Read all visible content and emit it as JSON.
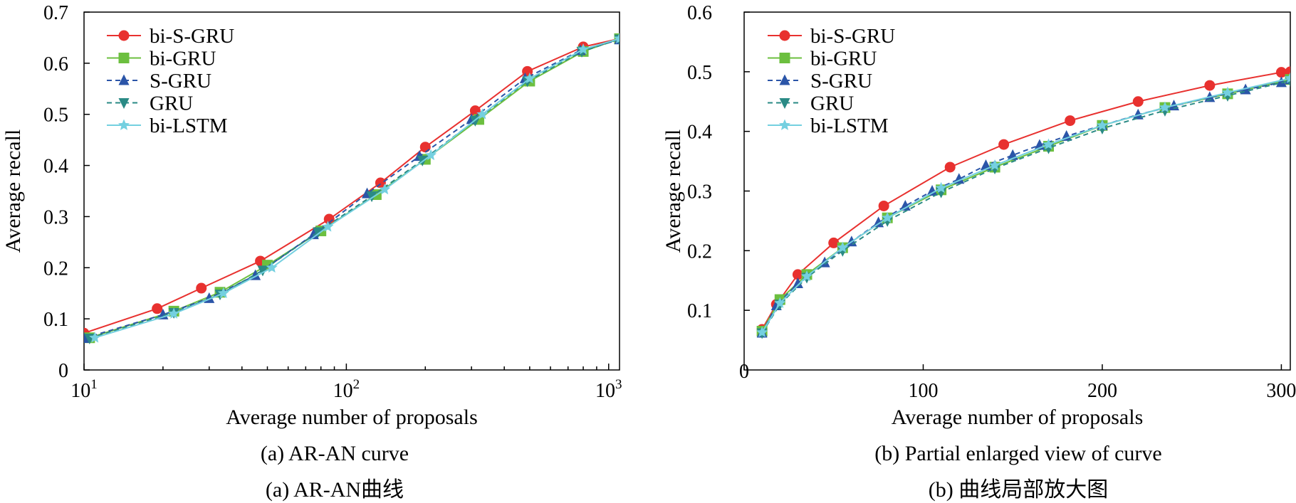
{
  "chart_data": [
    {
      "type": "line",
      "title": "",
      "xlabel": "Average number of proposals",
      "ylabel": "Average recall",
      "xscale": "log",
      "xlim": [
        10,
        1100
      ],
      "ylim": [
        0,
        0.7
      ],
      "x_ticks": [
        10,
        100,
        1000
      ],
      "x_tick_base": "10",
      "x_tick_exponents": [
        "1",
        "2",
        "3"
      ],
      "y_ticks": [
        0,
        0.1,
        0.2,
        0.3,
        0.4,
        0.5,
        0.6,
        0.7
      ],
      "y_tick_labels": [
        "0",
        "0.1",
        "0.2",
        "0.3",
        "0.4",
        "0.5",
        "0.6",
        "0.7"
      ],
      "legend_position": "top-left",
      "caption_en": "(a) AR-AN curve",
      "caption_cn": "(a) AR-AN曲线",
      "series": [
        {
          "name": "bi-S-GRU",
          "color": "#e8312f",
          "marker": "circle",
          "dash": "solid",
          "x": [
            10,
            19,
            28,
            47,
            86,
            135,
            200,
            310,
            490,
            800,
            1100
          ],
          "y": [
            0.072,
            0.12,
            0.16,
            0.213,
            0.295,
            0.366,
            0.436,
            0.507,
            0.584,
            0.632,
            0.648
          ]
        },
        {
          "name": "bi-GRU",
          "color": "#6cbf3f",
          "marker": "square",
          "dash": "solid",
          "x": [
            10.5,
            22,
            33,
            50,
            80,
            130,
            200,
            320,
            500,
            800,
            1100
          ],
          "y": [
            0.063,
            0.115,
            0.152,
            0.205,
            0.272,
            0.343,
            0.412,
            0.49,
            0.565,
            0.623,
            0.648
          ]
        },
        {
          "name": "S-GRU",
          "color": "#2b55a8",
          "marker": "triangle-up",
          "dash": "dashed",
          "x": [
            10,
            20,
            30,
            45,
            75,
            120,
            190,
            300,
            480,
            780,
            1100
          ],
          "y": [
            0.062,
            0.108,
            0.14,
            0.185,
            0.265,
            0.345,
            0.418,
            0.49,
            0.57,
            0.625,
            0.646
          ]
        },
        {
          "name": "GRU",
          "color": "#2a8a85",
          "marker": "triangle-down",
          "dash": "dashed",
          "x": [
            10.5,
            22,
            33,
            48,
            78,
            125,
            195,
            310,
            490,
            790,
            1100
          ],
          "y": [
            0.062,
            0.112,
            0.148,
            0.195,
            0.27,
            0.34,
            0.41,
            0.488,
            0.565,
            0.623,
            0.647
          ]
        },
        {
          "name": "bi-LSTM",
          "color": "#74d0e0",
          "marker": "star",
          "dash": "solid",
          "x": [
            11,
            22,
            34,
            52,
            85,
            140,
            210,
            330,
            500,
            800,
            1100
          ],
          "y": [
            0.063,
            0.11,
            0.15,
            0.2,
            0.28,
            0.353,
            0.42,
            0.5,
            0.57,
            0.627,
            0.648
          ]
        }
      ]
    },
    {
      "type": "line",
      "title": "",
      "xlabel": "Average number of proposals",
      "ylabel": "Average recall",
      "xscale": "linear",
      "xlim": [
        0,
        305
      ],
      "ylim": [
        0,
        0.6
      ],
      "x_ticks": [
        0,
        100,
        200,
        300
      ],
      "x_tick_labels": [
        "0",
        "100",
        "200",
        "300"
      ],
      "y_ticks": [
        0.1,
        0.2,
        0.3,
        0.4,
        0.5,
        0.6
      ],
      "y_tick_labels": [
        "0.1",
        "0.2",
        "0.3",
        "0.4",
        "0.5",
        "0.6"
      ],
      "legend_position": "top-left",
      "caption_en": "(b) Partial enlarged view of curve",
      "caption_cn": "(b) 曲线局部放大图",
      "series": [
        {
          "name": "bi-S-GRU",
          "color": "#e8312f",
          "marker": "circle",
          "dash": "solid",
          "x": [
            10,
            18,
            30,
            50,
            78,
            115,
            145,
            182,
            220,
            260,
            300,
            305
          ],
          "y": [
            0.068,
            0.11,
            0.16,
            0.213,
            0.275,
            0.34,
            0.378,
            0.418,
            0.45,
            0.477,
            0.499,
            0.5
          ]
        },
        {
          "name": "bi-GRU",
          "color": "#6cbf3f",
          "marker": "square",
          "dash": "solid",
          "x": [
            10,
            20,
            35,
            55,
            80,
            110,
            140,
            170,
            200,
            235,
            270,
            305
          ],
          "y": [
            0.065,
            0.118,
            0.16,
            0.205,
            0.255,
            0.302,
            0.34,
            0.375,
            0.41,
            0.44,
            0.463,
            0.487
          ]
        },
        {
          "name": "S-GRU",
          "color": "#2b55a8",
          "marker": "triangle-up",
          "dash": "dashed",
          "x": [
            10,
            18,
            30,
            45,
            60,
            75,
            90,
            105,
            120,
            135,
            150,
            165,
            180,
            200,
            220,
            240,
            260,
            280,
            300,
            305
          ],
          "y": [
            0.062,
            0.108,
            0.145,
            0.18,
            0.215,
            0.247,
            0.275,
            0.3,
            0.32,
            0.343,
            0.36,
            0.377,
            0.392,
            0.41,
            0.428,
            0.443,
            0.457,
            0.47,
            0.482,
            0.487
          ]
        },
        {
          "name": "GRU",
          "color": "#2a8a85",
          "marker": "triangle-down",
          "dash": "dashed",
          "x": [
            10,
            20,
            35,
            55,
            80,
            110,
            140,
            170,
            200,
            235,
            270,
            305
          ],
          "y": [
            0.062,
            0.11,
            0.155,
            0.2,
            0.25,
            0.298,
            0.338,
            0.372,
            0.405,
            0.435,
            0.46,
            0.485
          ]
        },
        {
          "name": "bi-LSTM",
          "color": "#74d0e0",
          "marker": "star",
          "dash": "solid",
          "x": [
            10,
            20,
            35,
            55,
            80,
            110,
            140,
            170,
            200,
            235,
            270,
            305
          ],
          "y": [
            0.063,
            0.112,
            0.157,
            0.205,
            0.255,
            0.305,
            0.343,
            0.378,
            0.41,
            0.44,
            0.465,
            0.489
          ]
        }
      ]
    }
  ]
}
